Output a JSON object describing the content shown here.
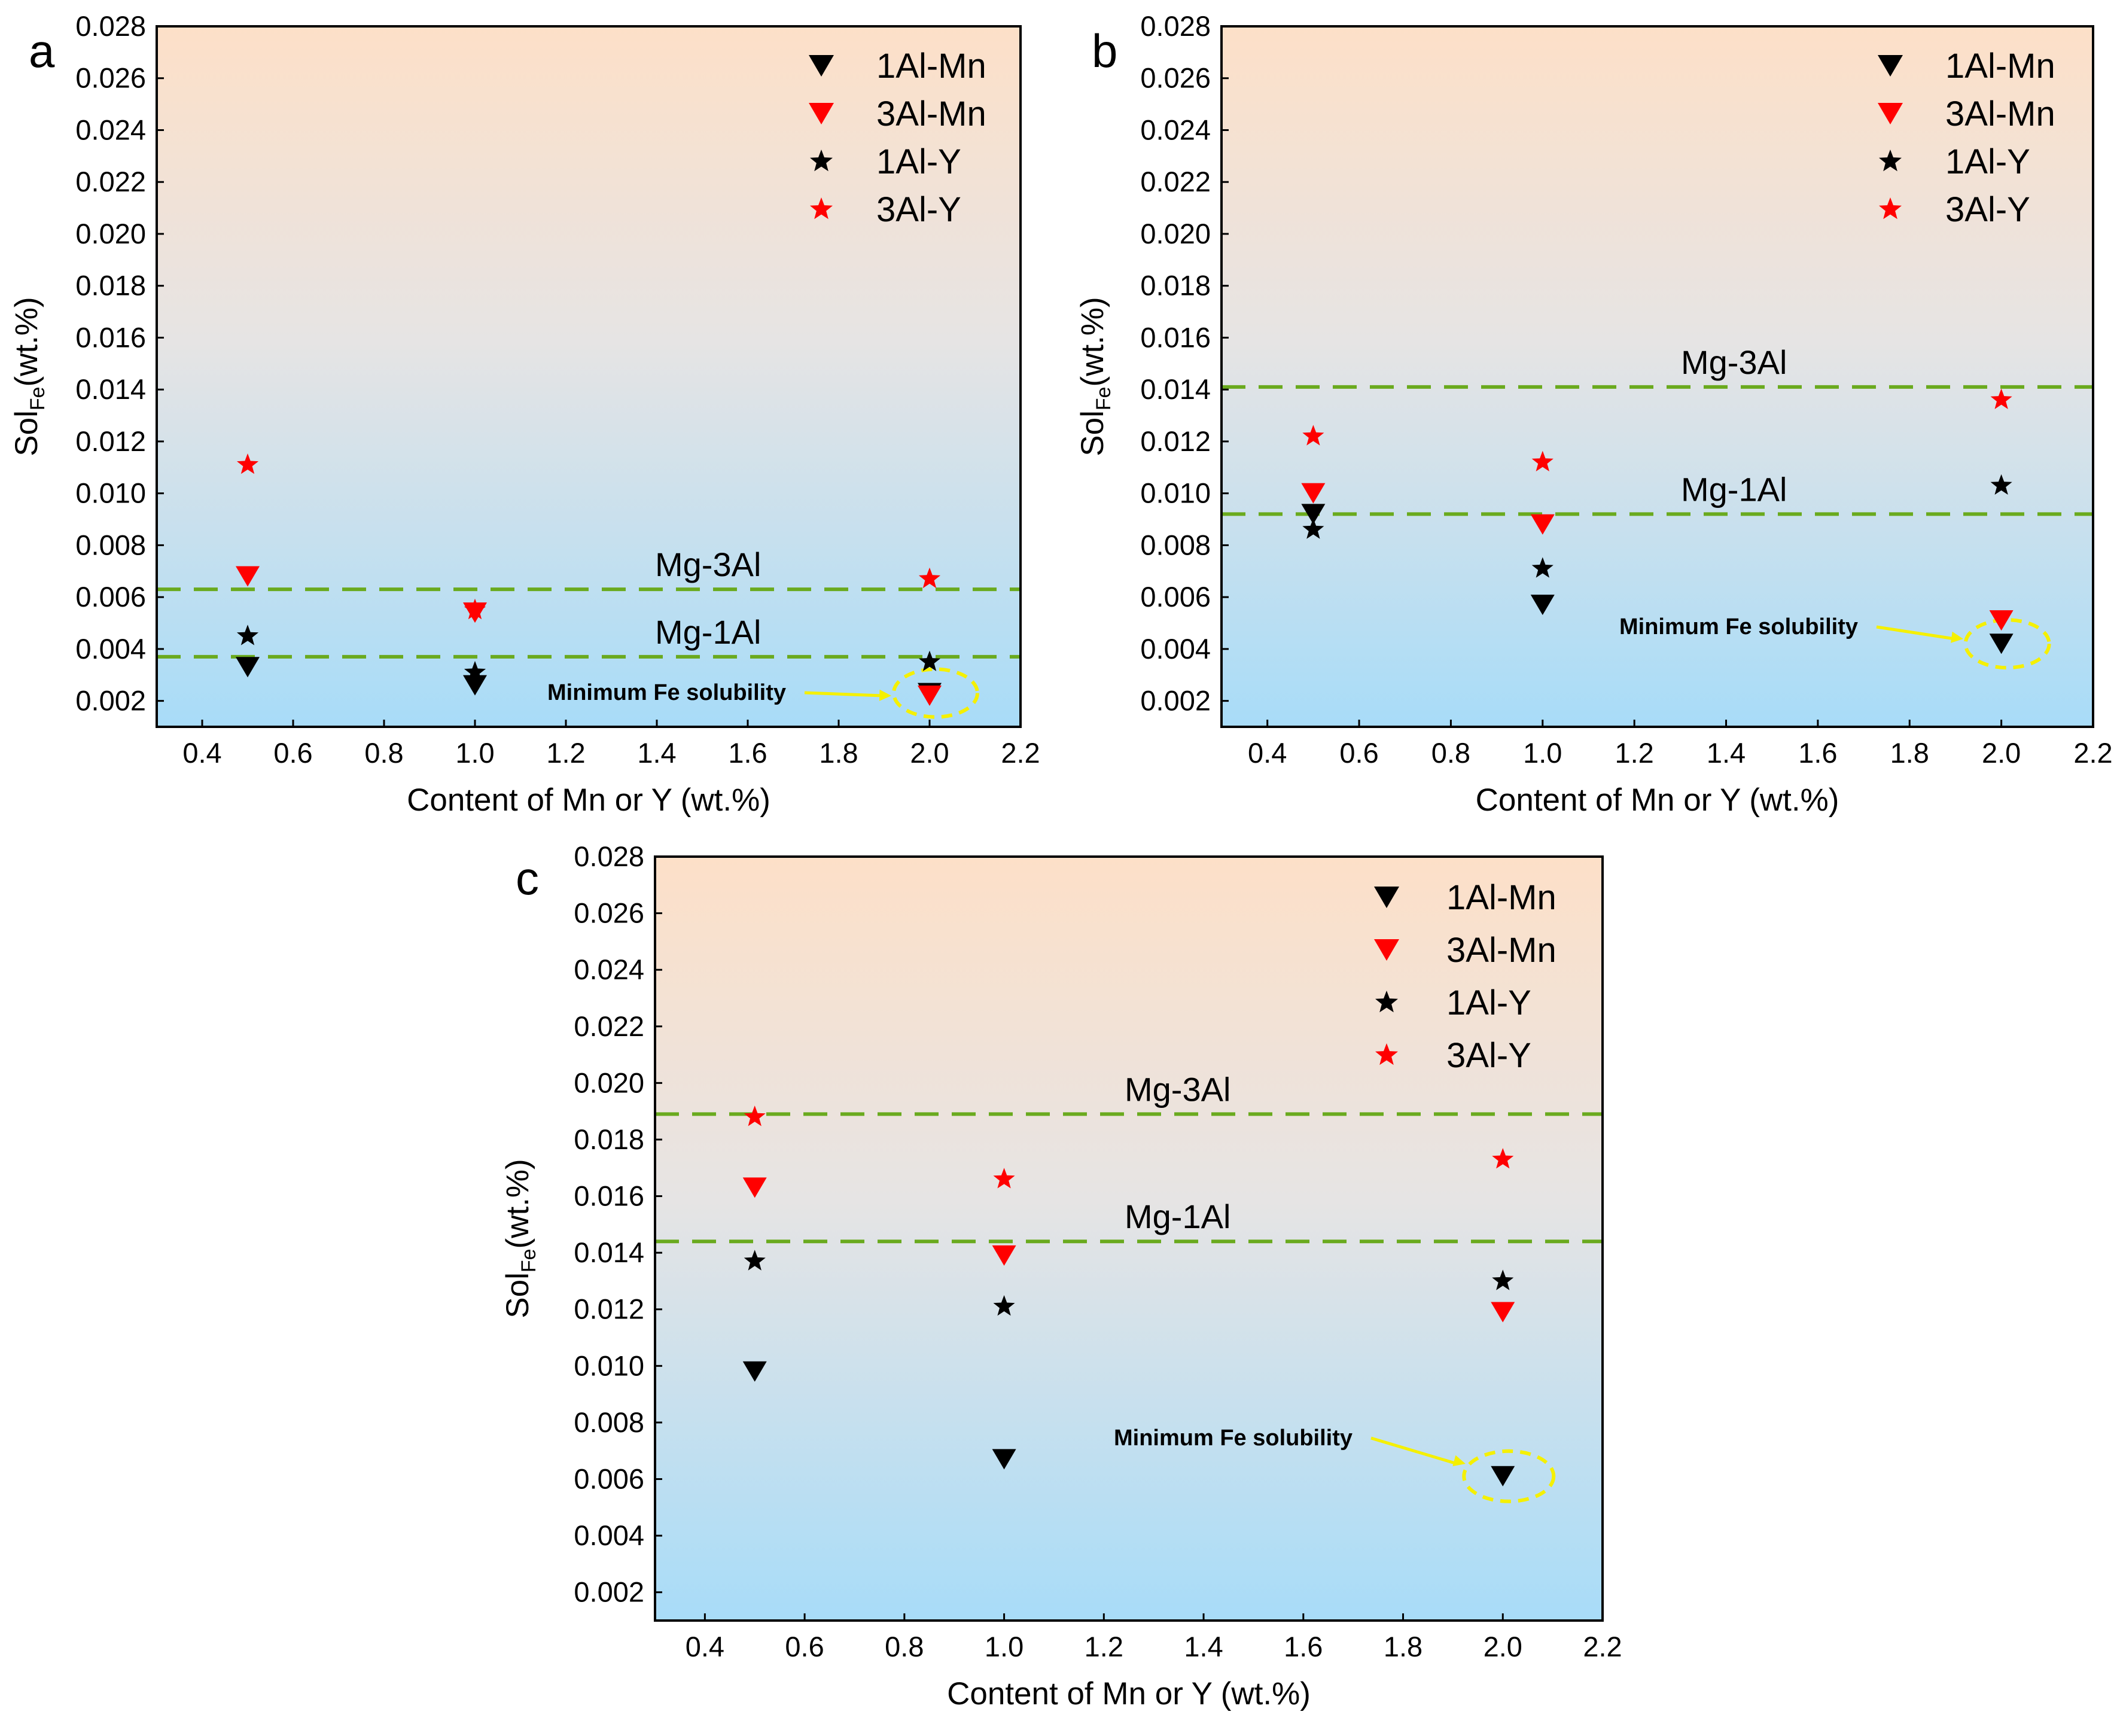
{
  "chart_data": [
    {
      "type": "scatter",
      "panel": "a",
      "xlabel": "Content of Mn or Y (wt.%)",
      "ylabel_main": "Sol",
      "ylabel_sub": "Fe",
      "ylabel_tail": "(wt.%)",
      "xlim": [
        0.3,
        2.2
      ],
      "ylim": [
        0.001,
        0.028
      ],
      "xticks": [
        0.4,
        0.6,
        0.8,
        1.0,
        1.2,
        1.4,
        1.6,
        1.8,
        2.0,
        2.2
      ],
      "xtick_labels": [
        "0.4",
        "0.6",
        "0.8",
        "1.0",
        "1.2",
        "1.4",
        "1.6",
        "1.8",
        "2.0",
        "2.2"
      ],
      "yticks": [
        0.002,
        0.004,
        0.006,
        0.008,
        0.01,
        0.012,
        0.014,
        0.016,
        0.018,
        0.02,
        0.022,
        0.024,
        0.026,
        0.028
      ],
      "ytick_labels": [
        "0.002",
        "0.004",
        "0.006",
        "0.008",
        "0.010",
        "0.012",
        "0.014",
        "0.016",
        "0.018",
        "0.020",
        "0.022",
        "0.024",
        "0.026",
        "0.028"
      ],
      "legend_position": "top-right",
      "series": [
        {
          "name": "1Al-Mn",
          "marker": "triangle-down",
          "color": "#000000",
          "x": [
            0.5,
            1.0,
            2.0
          ],
          "y": [
            0.0033,
            0.0026,
            0.0023
          ]
        },
        {
          "name": "3Al-Mn",
          "marker": "triangle-down",
          "color": "#ff0000",
          "x": [
            0.5,
            1.0,
            2.0
          ],
          "y": [
            0.0068,
            0.0054,
            0.0022
          ]
        },
        {
          "name": "1Al-Y",
          "marker": "star",
          "color": "#000000",
          "x": [
            0.5,
            1.0,
            2.0
          ],
          "y": [
            0.0045,
            0.0031,
            0.0035
          ]
        },
        {
          "name": "3Al-Y",
          "marker": "star",
          "color": "#ff0000",
          "x": [
            0.5,
            1.0,
            2.0
          ],
          "y": [
            0.0111,
            0.0055,
            0.0067
          ]
        }
      ],
      "reference_lines": [
        {
          "label": "Mg-3Al",
          "y": 0.0063,
          "color": "#6aaa1e"
        },
        {
          "label": "Mg-1Al",
          "y": 0.0037,
          "color": "#6aaa1e"
        }
      ],
      "annotation": {
        "text": "Minimum Fe solubility",
        "x": 2.0,
        "y": 0.0023
      }
    },
    {
      "type": "scatter",
      "panel": "b",
      "xlabel": "Content of Mn or Y (wt.%)",
      "ylabel_main": "Sol",
      "ylabel_sub": "Fe",
      "ylabel_tail": "(wt.%)",
      "xlim": [
        0.3,
        2.2
      ],
      "ylim": [
        0.001,
        0.028
      ],
      "xticks": [
        0.4,
        0.6,
        0.8,
        1.0,
        1.2,
        1.4,
        1.6,
        1.8,
        2.0,
        2.2
      ],
      "xtick_labels": [
        "0.4",
        "0.6",
        "0.8",
        "1.0",
        "1.2",
        "1.4",
        "1.6",
        "1.8",
        "2.0",
        "2.2"
      ],
      "yticks": [
        0.002,
        0.004,
        0.006,
        0.008,
        0.01,
        0.012,
        0.014,
        0.016,
        0.018,
        0.02,
        0.022,
        0.024,
        0.026,
        0.028
      ],
      "ytick_labels": [
        "0.002",
        "0.004",
        "0.006",
        "0.008",
        "0.010",
        "0.012",
        "0.014",
        "0.016",
        "0.018",
        "0.020",
        "0.022",
        "0.024",
        "0.026",
        "0.028"
      ],
      "legend_position": "top-right",
      "series": [
        {
          "name": "1Al-Mn",
          "marker": "triangle-down",
          "color": "#000000",
          "x": [
            0.5,
            1.0,
            2.0
          ],
          "y": [
            0.0092,
            0.0057,
            0.0042
          ]
        },
        {
          "name": "3Al-Mn",
          "marker": "triangle-down",
          "color": "#ff0000",
          "x": [
            0.5,
            1.0,
            2.0
          ],
          "y": [
            0.01,
            0.0088,
            0.0051
          ]
        },
        {
          "name": "1Al-Y",
          "marker": "star",
          "color": "#000000",
          "x": [
            0.5,
            1.0,
            2.0
          ],
          "y": [
            0.0086,
            0.0071,
            0.0103
          ]
        },
        {
          "name": "3Al-Y",
          "marker": "star",
          "color": "#ff0000",
          "x": [
            0.5,
            1.0,
            2.0
          ],
          "y": [
            0.0122,
            0.0112,
            0.0136
          ]
        }
      ],
      "reference_lines": [
        {
          "label": "Mg-3Al",
          "y": 0.0141,
          "color": "#6aaa1e"
        },
        {
          "label": "Mg-1Al",
          "y": 0.0092,
          "color": "#6aaa1e"
        }
      ],
      "annotation": {
        "text": "Minimum Fe solubility",
        "x": 2.0,
        "y": 0.0042
      }
    },
    {
      "type": "scatter",
      "panel": "c",
      "xlabel": "Content of Mn or Y (wt.%)",
      "ylabel_main": "Sol",
      "ylabel_sub": "Fe",
      "ylabel_tail": "(wt.%)",
      "xlim": [
        0.3,
        2.2
      ],
      "ylim": [
        0.001,
        0.028
      ],
      "xticks": [
        0.4,
        0.6,
        0.8,
        1.0,
        1.2,
        1.4,
        1.6,
        1.8,
        2.0,
        2.2
      ],
      "xtick_labels": [
        "0.4",
        "0.6",
        "0.8",
        "1.0",
        "1.2",
        "1.4",
        "1.6",
        "1.8",
        "2.0",
        "2.2"
      ],
      "yticks": [
        0.002,
        0.004,
        0.006,
        0.008,
        0.01,
        0.012,
        0.014,
        0.016,
        0.018,
        0.02,
        0.022,
        0.024,
        0.026,
        0.028
      ],
      "ytick_labels": [
        "0.002",
        "0.004",
        "0.006",
        "0.008",
        "0.010",
        "0.012",
        "0.014",
        "0.016",
        "0.018",
        "0.020",
        "0.022",
        "0.024",
        "0.026",
        "0.028"
      ],
      "legend_position": "top-right",
      "series": [
        {
          "name": "1Al-Mn",
          "marker": "triangle-down",
          "color": "#000000",
          "x": [
            0.5,
            1.0,
            2.0
          ],
          "y": [
            0.0098,
            0.0067,
            0.0061
          ]
        },
        {
          "name": "3Al-Mn",
          "marker": "triangle-down",
          "color": "#ff0000",
          "x": [
            0.5,
            1.0,
            2.0
          ],
          "y": [
            0.0163,
            0.0139,
            0.0119
          ]
        },
        {
          "name": "1Al-Y",
          "marker": "star",
          "color": "#000000",
          "x": [
            0.5,
            1.0,
            2.0
          ],
          "y": [
            0.0137,
            0.0121,
            0.013
          ]
        },
        {
          "name": "3Al-Y",
          "marker": "star",
          "color": "#ff0000",
          "x": [
            0.5,
            1.0,
            2.0
          ],
          "y": [
            0.0188,
            0.0166,
            0.0173
          ]
        }
      ],
      "reference_lines": [
        {
          "label": "Mg-3Al",
          "y": 0.0189,
          "color": "#6aaa1e"
        },
        {
          "label": "Mg-1Al",
          "y": 0.0144,
          "color": "#6aaa1e"
        }
      ],
      "annotation": {
        "text": "Minimum Fe solubility",
        "x": 2.0,
        "y": 0.0061
      }
    }
  ],
  "style": {
    "background_top": "#fde0c8",
    "background_bottom": "#a8dcf8",
    "annotation_color": "#f5f000",
    "axis_color": "#000000"
  }
}
